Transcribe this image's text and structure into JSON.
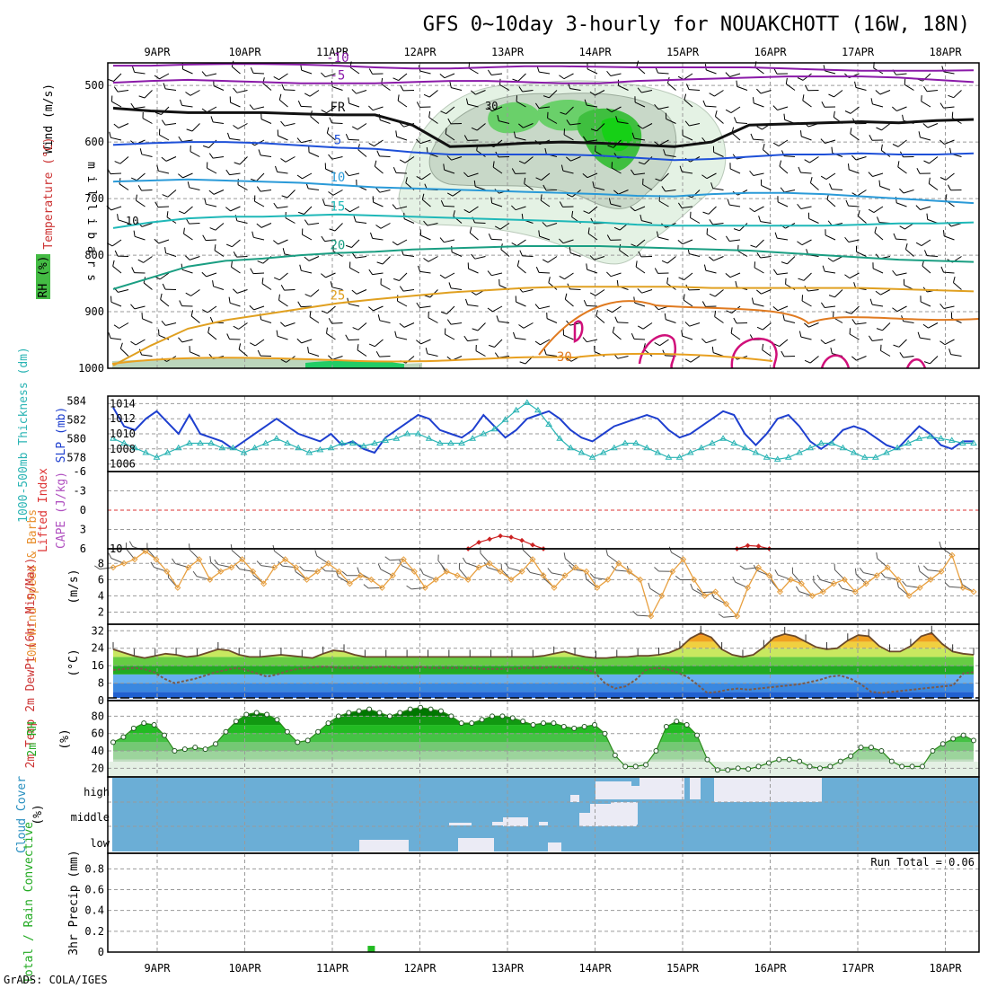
{
  "title": "GFS 0~10day 3-hourly for NOUAKCHOTT (16W, 18N)",
  "credit": "GrADS: COLA/IGES",
  "run_total_text": "Run Total = 0.06",
  "date_labels": [
    "9APR",
    "10APR",
    "11APR",
    "12APR",
    "13APR",
    "14APR",
    "15APR",
    "16APR",
    "17APR",
    "18APR"
  ],
  "chart_data": [
    {
      "type": "contour",
      "panel": "upper-air",
      "ylabel": "m i l l i b a r s",
      "side_labels": [
        "Wind (m/s)",
        "Temperature (°C)",
        "RH (%)"
      ],
      "y_ticks": [
        500,
        600,
        700,
        800,
        900,
        1000
      ],
      "y_range": [
        460,
        1000
      ],
      "x_ticks": [
        "9APR",
        "10APR",
        "11APR",
        "12APR",
        "13APR",
        "14APR",
        "15APR",
        "16APR",
        "17APR",
        "18APR"
      ],
      "temperature_contour_labels": [
        "-10",
        "-5",
        "FR",
        "5",
        "10",
        "15",
        "20",
        "25",
        "30"
      ],
      "rh_contour_labels": [
        "10",
        "30"
      ],
      "isotherms": [
        {
          "label": "-10",
          "color": "#8a1aa8",
          "p": [
            465,
            465,
            463,
            462,
            462,
            463,
            465,
            468,
            470,
            470,
            468,
            466,
            466,
            467,
            468,
            468,
            468,
            468,
            470,
            472,
            474,
            474,
            474,
            473
          ]
        },
        {
          "label": "-5",
          "color": "#8a1aa8",
          "p": [
            495,
            492,
            490,
            492,
            494,
            496,
            496,
            496,
            494,
            492,
            492,
            494,
            496,
            496,
            492,
            490,
            488,
            486,
            484,
            484,
            484,
            486,
            490,
            494
          ]
        },
        {
          "label": "FR",
          "color": "#111111",
          "p": [
            540,
            545,
            548,
            548,
            548,
            550,
            552,
            552,
            570,
            608,
            606,
            602,
            600,
            602,
            605,
            608,
            600,
            570,
            568,
            566,
            564,
            566,
            562,
            560
          ]
        },
        {
          "label": "5",
          "color": "#1e50d8",
          "p": [
            605,
            602,
            600,
            600,
            602,
            606,
            610,
            612,
            618,
            622,
            622,
            622,
            622,
            624,
            628,
            632,
            630,
            626,
            622,
            622,
            620,
            622,
            622,
            620
          ]
        },
        {
          "label": "10",
          "color": "#2a9ad8",
          "p": [
            670,
            668,
            666,
            668,
            670,
            672,
            676,
            680,
            682,
            684,
            686,
            688,
            690,
            692,
            695,
            696,
            692,
            690,
            690,
            692,
            696,
            700,
            704,
            708
          ]
        },
        {
          "label": "15",
          "color": "#1fb8b8",
          "p": [
            752,
            742,
            735,
            732,
            732,
            730,
            728,
            730,
            732,
            734,
            736,
            738,
            740,
            742,
            746,
            748,
            748,
            748,
            748,
            748,
            746,
            744,
            744,
            742
          ]
        },
        {
          "label": "20",
          "color": "#1a9e82",
          "p": [
            860,
            840,
            820,
            810,
            806,
            800,
            796,
            794,
            790,
            788,
            786,
            784,
            784,
            784,
            786,
            788,
            790,
            792,
            796,
            800,
            804,
            808,
            810,
            812
          ]
        },
        {
          "label": "25",
          "color": "#e0a020",
          "p": [
            995,
            960,
            930,
            915,
            905,
            895,
            885,
            878,
            872,
            866,
            862,
            858,
            856,
            856,
            856,
            856,
            858,
            858,
            858,
            858,
            858,
            860,
            862,
            864
          ]
        }
      ]
    },
    {
      "type": "line",
      "panel": "slp-thickness",
      "left_label": "1000-500mb Thickness (dm)",
      "right_label": "SLP (mb)",
      "left_ticks": [
        578,
        580,
        582,
        584
      ],
      "right_ticks": [
        1006,
        1008,
        1010,
        1012,
        1014
      ],
      "series": [
        {
          "name": "SLP (mb)",
          "color": "#1e3fcf",
          "marker": "none",
          "values": [
            1013.5,
            1011.0,
            1010.5,
            1012.0,
            1013.0,
            1011.5,
            1010.0,
            1012.5,
            1010.0,
            1009.5,
            1009.0,
            1008.0,
            1009.0,
            1010.0,
            1011.0,
            1012.0,
            1011.0,
            1010.0,
            1009.5,
            1009.0,
            1010.0,
            1008.5,
            1009.0,
            1008.0,
            1007.5,
            1009.5,
            1010.5,
            1011.5,
            1012.5,
            1012.0,
            1010.5,
            1010.0,
            1009.5,
            1010.5,
            1012.5,
            1011.0,
            1009.5,
            1010.5,
            1012.0,
            1012.5,
            1013.0,
            1012.0,
            1010.5,
            1009.5,
            1009.0,
            1010.0,
            1011.0,
            1011.5,
            1012.0,
            1012.5,
            1012.0,
            1010.5,
            1009.5,
            1010.0,
            1011.0,
            1012.0,
            1013.0,
            1012.5,
            1010.0,
            1008.5,
            1010.0,
            1012.0,
            1012.5,
            1011.0,
            1009.0,
            1008.0,
            1009.0,
            1010.5,
            1011.0,
            1010.5,
            1009.5,
            1008.5,
            1008.0,
            1009.5,
            1011.0,
            1010.0,
            1008.5,
            1008.0,
            1009.0,
            1009.0
          ]
        },
        {
          "name": "1000-500mb Thickness (dm)",
          "color": "#2ab4b4",
          "marker": "triangle",
          "values": [
            580.0,
            579.5,
            579.0,
            578.5,
            578.0,
            578.5,
            579.0,
            579.5,
            579.5,
            579.5,
            579.0,
            579.0,
            578.5,
            579.0,
            579.5,
            580.0,
            579.5,
            579.0,
            578.5,
            578.8,
            579.0,
            579.5,
            579.5,
            579.2,
            579.5,
            579.8,
            580.0,
            580.5,
            580.5,
            580.0,
            579.5,
            579.5,
            579.5,
            580.0,
            580.5,
            581.0,
            582.0,
            583.0,
            583.8,
            583.0,
            581.5,
            580.0,
            579.0,
            578.5,
            578.0,
            578.5,
            579.0,
            579.5,
            579.5,
            579.0,
            578.5,
            578.0,
            578.0,
            578.5,
            579.0,
            579.5,
            580.0,
            579.5,
            579.0,
            578.5,
            578.0,
            577.8,
            578.0,
            578.5,
            579.0,
            579.5,
            579.5,
            579.0,
            578.5,
            578.0,
            578.0,
            578.5,
            579.0,
            579.5,
            580.0,
            580.2,
            580.0,
            579.8,
            579.5,
            579.5
          ]
        }
      ]
    },
    {
      "type": "line",
      "panel": "instability",
      "left_label": "Lifted Index",
      "right_label": "CAPE (J/kg)",
      "left_ticks": [
        -6,
        -3,
        0,
        3,
        6
      ],
      "right_ticks": [
        10
      ],
      "series": [
        {
          "name": "Lifted Index",
          "color": "#cc2222",
          "marker": "diamond",
          "points": [
            [
              33,
              6.0
            ],
            [
              34,
              5.0
            ],
            [
              35,
              4.5
            ],
            [
              36,
              4.0
            ],
            [
              37,
              4.2
            ],
            [
              38,
              4.7
            ],
            [
              39,
              5.4
            ],
            [
              40,
              6.0
            ],
            [
              58,
              6.0
            ],
            [
              59,
              5.5
            ],
            [
              60,
              5.6
            ],
            [
              61,
              6.0
            ]
          ]
        }
      ]
    },
    {
      "type": "line",
      "panel": "wind-10m",
      "left_label": "10m Wind Speed & Barbs",
      "unit": "(m/s)",
      "y_ticks": [
        2,
        4,
        6,
        8
      ],
      "y_range": [
        0.5,
        9.8
      ],
      "series": [
        {
          "name": "10m Wind Speed",
          "color": "#e8a040",
          "marker": "diamond",
          "values": [
            7.5,
            8.0,
            8.5,
            9.5,
            8.5,
            7.0,
            5.0,
            7.5,
            8.5,
            6.0,
            7.0,
            7.5,
            8.5,
            7.0,
            5.5,
            7.5,
            8.5,
            7.5,
            6.0,
            7.0,
            8.0,
            7.0,
            5.5,
            6.5,
            6.0,
            5.0,
            6.5,
            8.5,
            7.0,
            5.0,
            6.0,
            7.0,
            6.5,
            6.0,
            7.5,
            8.0,
            7.0,
            6.0,
            7.0,
            8.5,
            6.5,
            5.0,
            6.5,
            7.5,
            7.0,
            5.0,
            6.0,
            8.0,
            7.0,
            6.0,
            1.5,
            4.0,
            7.0,
            8.5,
            6.0,
            4.0,
            4.5,
            3.0,
            1.5,
            5.0,
            7.5,
            6.5,
            4.5,
            6.0,
            5.5,
            4.0,
            4.5,
            5.5,
            6.0,
            4.5,
            5.5,
            6.5,
            7.5,
            6.0,
            4.0,
            5.0,
            6.0,
            7.0,
            9.0,
            5.0,
            4.5
          ]
        }
      ]
    },
    {
      "type": "area",
      "panel": "temperature-2m",
      "left_label": "2m Temp 2m DewPt (6hr Min/Max)",
      "unit": "(°C)",
      "y_ticks": [
        0,
        8,
        16,
        24,
        32
      ],
      "y_range": [
        0,
        35
      ],
      "series": [
        {
          "name": "2m Temp",
          "color": "#6b4a2a",
          "values": [
            23.5,
            22.0,
            20.5,
            19.5,
            20.5,
            21.5,
            21.0,
            20.0,
            20.5,
            22.0,
            23.5,
            23.0,
            21.0,
            20.0,
            20.0,
            20.5,
            21.0,
            20.5,
            20.0,
            19.5,
            21.5,
            23.0,
            22.5,
            21.0,
            20.0,
            20.0,
            20.0,
            20.0,
            20.0,
            20.0,
            20.0,
            20.0,
            20.0,
            20.0,
            20.0,
            20.0,
            20.0,
            20.0,
            20.0,
            20.0,
            20.0,
            20.5,
            21.5,
            22.5,
            21.0,
            20.0,
            19.5,
            19.5,
            20.0,
            20.0,
            20.5,
            20.5,
            21.0,
            22.0,
            24.0,
            28.5,
            31.0,
            29.0,
            23.5,
            21.0,
            20.0,
            21.0,
            24.5,
            29.0,
            30.5,
            29.5,
            27.0,
            24.5,
            23.5,
            24.0,
            27.5,
            30.0,
            29.5,
            25.0,
            22.5,
            22.5,
            25.0,
            29.5,
            31.0,
            26.0,
            22.5,
            21.5,
            21.0
          ]
        },
        {
          "name": "2m DewPt",
          "color": "#7a5a4a",
          "values": [
            14.0,
            14.5,
            15.0,
            14.5,
            13.0,
            10.0,
            8.0,
            9.0,
            10.0,
            11.5,
            13.0,
            14.0,
            15.0,
            14.0,
            12.5,
            11.0,
            12.0,
            13.5,
            14.5,
            15.0,
            15.5,
            15.5,
            15.0,
            15.0,
            15.0,
            15.0,
            15.5,
            15.5,
            15.0,
            15.0,
            15.5,
            15.0,
            15.0,
            15.0,
            15.0,
            15.0,
            14.5,
            14.5,
            14.5,
            14.5,
            15.0,
            15.0,
            15.0,
            15.5,
            15.0,
            15.0,
            14.5,
            13.0,
            8.0,
            5.5,
            6.5,
            9.5,
            14.0,
            15.0,
            14.5,
            13.0,
            11.0,
            7.5,
            3.5,
            4.0,
            5.0,
            5.5,
            5.0,
            5.5,
            6.0,
            6.5,
            7.0,
            7.5,
            8.5,
            9.5,
            11.0,
            11.5,
            10.0,
            7.5,
            4.0,
            3.5,
            4.0,
            4.5,
            5.0,
            5.5,
            6.0,
            6.5,
            7.0,
            12.5,
            13.0
          ]
        }
      ]
    },
    {
      "type": "area",
      "panel": "rh-2m",
      "left_label": "2m RH",
      "unit": "(%)",
      "y_ticks": [
        20,
        40,
        60,
        80
      ],
      "y_range": [
        10,
        98
      ],
      "series": [
        {
          "name": "2m RH",
          "color": "#2a8a1a",
          "values": [
            50,
            56,
            66,
            72,
            70,
            58,
            40,
            42,
            44,
            42,
            48,
            62,
            74,
            82,
            84,
            82,
            76,
            62,
            50,
            52,
            62,
            72,
            80,
            84,
            86,
            88,
            84,
            80,
            84,
            88,
            90,
            88,
            86,
            80,
            72,
            72,
            76,
            80,
            80,
            78,
            74,
            70,
            72,
            72,
            68,
            66,
            68,
            70,
            60,
            35,
            22,
            22,
            24,
            40,
            68,
            74,
            70,
            58,
            30,
            18,
            18,
            20,
            19,
            22,
            26,
            30,
            30,
            28,
            22,
            20,
            22,
            28,
            34,
            44,
            44,
            40,
            28,
            22,
            22,
            22,
            40,
            48,
            54,
            58,
            52
          ]
        }
      ]
    },
    {
      "type": "heatmap",
      "panel": "cloud-cover",
      "left_label": "Cloud Cover",
      "unit": "(%)",
      "y_categories": [
        "high",
        "middle",
        "low"
      ]
    },
    {
      "type": "bar",
      "panel": "precip",
      "left_label": "Total / Rain Convective",
      "ylabel": "3hr Precip (mm)",
      "y_ticks": [
        0,
        0.2,
        0.4,
        0.6,
        0.8
      ],
      "y_range": [
        0,
        0.95
      ],
      "series": [
        {
          "name": "Total / Rain",
          "color": "#22bb22",
          "points": [
            [
              24,
              0.06
            ]
          ]
        }
      ]
    }
  ]
}
